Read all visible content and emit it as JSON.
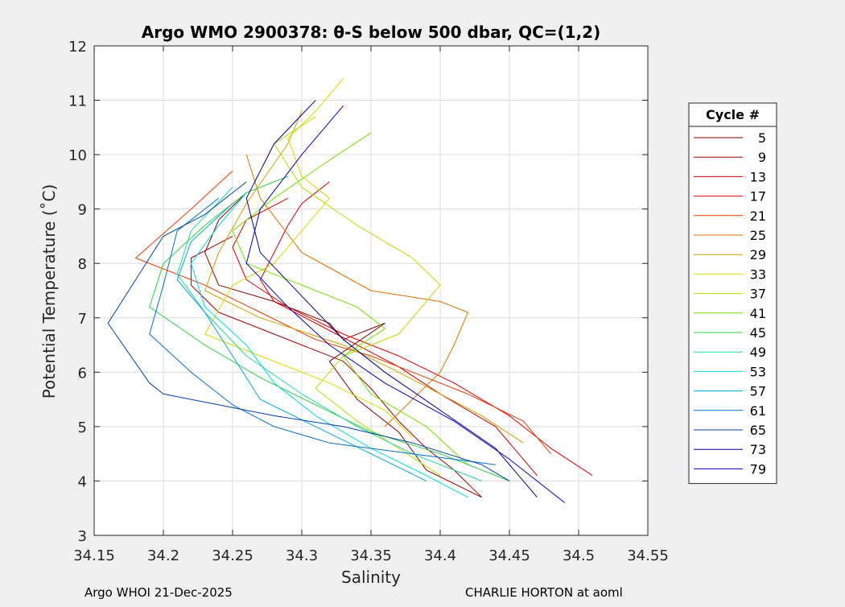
{
  "chart_data": {
    "type": "line",
    "title": "Argo WMO 2900378: θ-S below 500 dbar,  QC=(1,2)",
    "xlabel": "Salinity",
    "ylabel": "Potential Temperature (˚C)",
    "xlim": [
      34.15,
      34.55
    ],
    "ylim": [
      3,
      12
    ],
    "xticks": [
      34.15,
      34.2,
      34.25,
      34.3,
      34.35,
      34.4,
      34.45,
      34.5,
      34.55
    ],
    "yticks": [
      3,
      4,
      5,
      6,
      7,
      8,
      9,
      10,
      11,
      12
    ],
    "xtick_labels": [
      "34.15",
      "34.2",
      "34.25",
      "34.3",
      "34.35",
      "34.4",
      "34.45",
      "34.5",
      "34.55"
    ],
    "ytick_labels": [
      "3",
      "4",
      "5",
      "6",
      "7",
      "8",
      "9",
      "10",
      "11",
      "12"
    ],
    "grid": true,
    "legend": {
      "title": "Cycle #",
      "placement": "outside-right"
    },
    "series": [
      {
        "name": "5",
        "color": "#800000",
        "x": [
          34.26,
          34.24,
          34.23,
          34.24,
          34.28,
          34.32,
          34.33,
          34.36,
          34.32,
          34.34,
          34.37,
          34.39,
          34.43
        ],
        "y": [
          9.3,
          8.8,
          8.2,
          7.6,
          7.3,
          6.9,
          6.6,
          6.9,
          6.2,
          5.5,
          4.9,
          4.2,
          3.7
        ]
      },
      {
        "name": "9",
        "color": "#a00000",
        "x": [
          34.25,
          34.22,
          34.22,
          34.24,
          34.28,
          34.31,
          34.33,
          34.35,
          34.37,
          34.39,
          34.41,
          34.43
        ],
        "y": [
          8.5,
          8.1,
          7.6,
          7.1,
          6.7,
          6.4,
          6.2,
          5.7,
          5.1,
          4.6,
          4.2,
          3.7
        ]
      },
      {
        "name": "13",
        "color": "#c80000",
        "x": [
          34.32,
          34.3,
          34.29,
          34.28,
          34.27,
          34.28,
          34.31,
          34.34,
          34.37,
          34.4,
          34.44,
          34.47
        ],
        "y": [
          9.5,
          9.1,
          8.7,
          8.2,
          7.7,
          7.3,
          6.9,
          6.5,
          6.1,
          5.6,
          5.0,
          4.1
        ]
      },
      {
        "name": "17",
        "color": "#e00000",
        "x": [
          34.29,
          34.26,
          34.25,
          34.26,
          34.29,
          34.33,
          34.37,
          34.41,
          34.45,
          34.48,
          34.51
        ],
        "y": [
          9.2,
          8.8,
          8.3,
          7.7,
          7.2,
          6.7,
          6.3,
          5.8,
          5.2,
          4.6,
          4.1
        ]
      },
      {
        "name": "21",
        "color": "#e83a00",
        "x": [
          34.25,
          34.22,
          34.18,
          34.23,
          34.27,
          34.31,
          34.35,
          34.38,
          34.42,
          34.46,
          34.48
        ],
        "y": [
          9.7,
          9.0,
          8.1,
          7.6,
          7.1,
          6.6,
          6.3,
          6.0,
          5.6,
          5.1,
          4.5
        ]
      },
      {
        "name": "25",
        "color": "#e07000",
        "x": [
          34.26,
          34.27,
          34.3,
          34.35,
          34.4,
          34.42,
          34.41,
          34.4,
          34.38,
          34.36
        ],
        "y": [
          10.0,
          9.2,
          8.2,
          7.5,
          7.3,
          7.1,
          6.5,
          6.0,
          5.5,
          5.0
        ]
      },
      {
        "name": "29",
        "color": "#d0a000",
        "x": [
          34.3,
          34.29,
          34.26,
          34.24,
          34.23,
          34.27,
          34.33,
          34.37,
          34.4,
          34.43,
          34.46
        ],
        "y": [
          10.8,
          10.2,
          9.1,
          8.2,
          7.5,
          7.0,
          6.5,
          6.0,
          5.6,
          5.2,
          4.7
        ]
      },
      {
        "name": "33",
        "color": "#d8d800",
        "x": [
          34.33,
          34.31,
          34.29,
          34.3,
          34.32,
          34.3,
          34.28,
          34.25,
          34.23,
          34.27,
          34.32,
          34.36,
          34.38
        ],
        "y": [
          11.4,
          10.8,
          10.3,
          9.6,
          9.2,
          8.6,
          8.0,
          7.6,
          6.7,
          6.3,
          5.8,
          5.3,
          4.8
        ]
      },
      {
        "name": "37",
        "color": "#b0e000",
        "x": [
          34.31,
          34.28,
          34.3,
          34.34,
          34.38,
          34.4,
          34.37,
          34.33,
          34.31,
          34.34,
          34.37,
          34.4
        ],
        "y": [
          10.7,
          10.2,
          9.4,
          8.7,
          8.1,
          7.6,
          6.7,
          6.3,
          5.7,
          5.1,
          4.6,
          4.1
        ]
      },
      {
        "name": "41",
        "color": "#70e000",
        "x": [
          34.35,
          34.32,
          34.28,
          34.25,
          34.26,
          34.3,
          34.34,
          34.36,
          34.33,
          34.35,
          34.39,
          34.42
        ],
        "y": [
          10.4,
          9.9,
          9.2,
          8.6,
          8.0,
          7.6,
          7.2,
          6.8,
          6.3,
          5.6,
          5.0,
          4.3
        ]
      },
      {
        "name": "45",
        "color": "#30d040",
        "x": [
          34.29,
          34.26,
          34.23,
          34.2,
          34.19,
          34.23,
          34.27,
          34.31,
          34.35,
          34.4,
          34.45
        ],
        "y": [
          9.6,
          9.3,
          8.7,
          8.0,
          7.2,
          6.5,
          5.9,
          5.4,
          4.9,
          4.5,
          4.0
        ]
      },
      {
        "name": "49",
        "color": "#20d8a0",
        "x": [
          34.25,
          34.22,
          34.21,
          34.23,
          34.26,
          34.3,
          34.34,
          34.38,
          34.43
        ],
        "y": [
          9.4,
          8.6,
          7.8,
          7.1,
          6.3,
          5.6,
          5.0,
          4.5,
          4.0
        ]
      },
      {
        "name": "53",
        "color": "#00d8e0",
        "x": [
          34.26,
          34.24,
          34.22,
          34.23,
          34.26,
          34.28,
          34.31,
          34.35,
          34.39,
          34.42
        ],
        "y": [
          9.3,
          8.7,
          8.0,
          7.2,
          6.5,
          5.8,
          5.2,
          4.6,
          4.1,
          3.7
        ]
      },
      {
        "name": "57",
        "color": "#00a8e0",
        "x": [
          34.25,
          34.22,
          34.21,
          34.23,
          34.25,
          34.27,
          34.31,
          34.35,
          34.39
        ],
        "y": [
          9.1,
          8.4,
          7.7,
          7.1,
          6.3,
          5.5,
          5.0,
          4.5,
          4.0
        ]
      },
      {
        "name": "61",
        "color": "#0070d0",
        "x": [
          34.24,
          34.21,
          34.2,
          34.19,
          34.22,
          34.25,
          34.28,
          34.32,
          34.38,
          34.44
        ],
        "y": [
          9.2,
          8.6,
          7.6,
          6.7,
          6.0,
          5.4,
          5.0,
          4.7,
          4.5,
          4.3
        ]
      },
      {
        "name": "65",
        "color": "#0040b0",
        "x": [
          34.26,
          34.23,
          34.2,
          34.16,
          34.19,
          34.2,
          34.24,
          34.28,
          34.33,
          34.38,
          34.43,
          34.45
        ],
        "y": [
          9.5,
          8.9,
          8.5,
          6.9,
          5.8,
          5.6,
          5.4,
          5.2,
          5.0,
          4.7,
          4.3,
          4.0
        ]
      },
      {
        "name": "73",
        "color": "#000090",
        "x": [
          34.31,
          34.28,
          34.26,
          34.27,
          34.3,
          34.33,
          34.36,
          34.4,
          34.44,
          34.47
        ],
        "y": [
          11.0,
          10.2,
          9.2,
          8.2,
          7.4,
          6.6,
          6.0,
          5.3,
          4.6,
          3.7
        ]
      },
      {
        "name": "79",
        "color": "#0000c0",
        "x": [
          34.33,
          34.3,
          34.27,
          34.26,
          34.29,
          34.32,
          34.36,
          34.41,
          34.45,
          34.49
        ],
        "y": [
          10.9,
          10.0,
          9.0,
          8.0,
          7.2,
          6.5,
          5.8,
          5.1,
          4.4,
          3.6
        ]
      }
    ]
  },
  "footer": {
    "left": "Argo WHOI 21-Dec-2025",
    "right": "CHARLIE HORTON at aoml"
  }
}
